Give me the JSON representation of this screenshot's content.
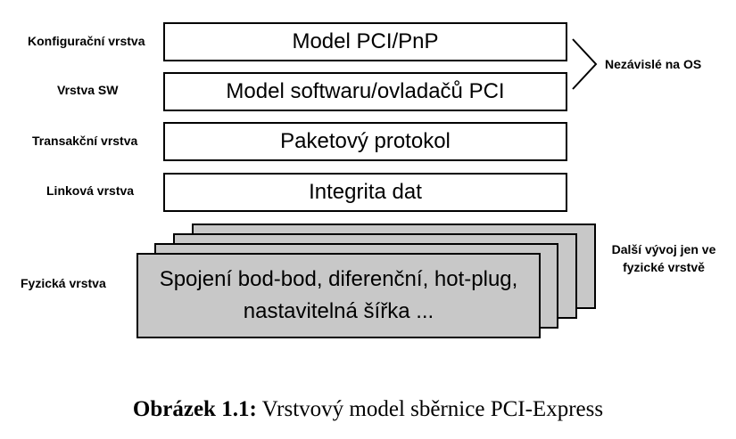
{
  "layers": [
    {
      "label": "Konfigurační vrstva",
      "text": "Model PCI/PnP"
    },
    {
      "label": "Vrstva SW",
      "text": "Model softwaru/ovladačů PCI"
    },
    {
      "label": "Transakční vrstva",
      "text": "Paketový protokol"
    },
    {
      "label": "Linková vrstva",
      "text": "Integrita dat"
    }
  ],
  "physical": {
    "label": "Fyzická vrstva",
    "line1": "Spojení bod-bod, diferenční, hot-plug,",
    "line2": "nastavitelná šířka ..."
  },
  "notes": {
    "os_independent": "Nezávislé na OS",
    "physical_line1": "Další vývoj jen ve",
    "physical_line2": "fyzické vrstvě"
  },
  "caption": {
    "bold": "Obrázek 1.1:",
    "text": "Vrstvový model sběrnice PCI-Express"
  }
}
